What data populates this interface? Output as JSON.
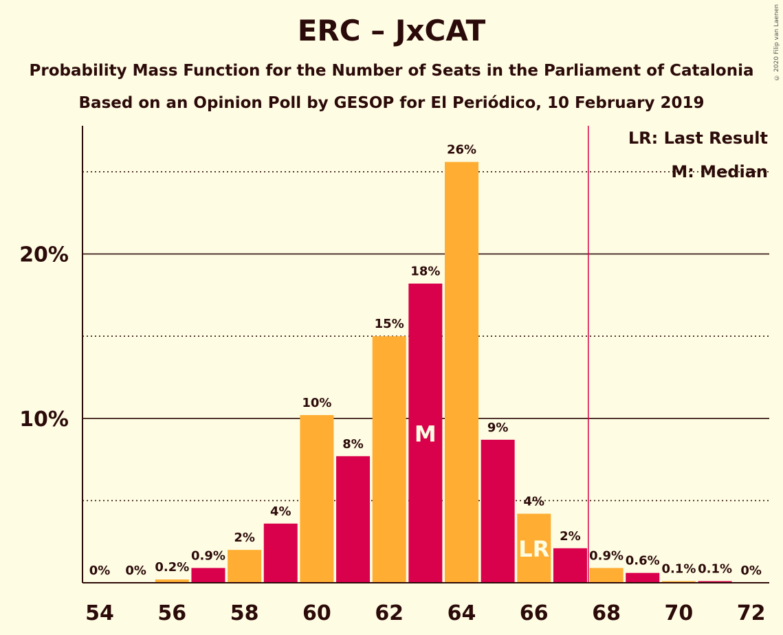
{
  "title": "ERC – JxCAT",
  "subtitle": "Probability Mass Function for the Number of Seats in the Parliament of Catalonia",
  "subtitle2": "Based on an Opinion Poll by GESOP for El Periódico, 10 February 2019",
  "copyright": "© 2020 Filip van Laenen",
  "colors": {
    "background": "#FEFCE2",
    "bar_odd": "#D9004C",
    "bar_even": "#FFAE33",
    "text": "#2B0A0A",
    "last_result_line": "#D9004C"
  },
  "chart_data": {
    "type": "bar",
    "x": [
      54,
      55,
      56,
      57,
      58,
      59,
      60,
      61,
      62,
      63,
      64,
      65,
      66,
      67,
      68,
      69,
      70,
      71,
      72
    ],
    "values": [
      0,
      0,
      0.2,
      0.9,
      2,
      3.6,
      10.2,
      7.7,
      15,
      18.2,
      25.6,
      8.7,
      4.2,
      2.1,
      0.9,
      0.6,
      0.1,
      0.1,
      0
    ],
    "labels": [
      "0%",
      "0%",
      "0.2%",
      "0.9%",
      "2%",
      "4%",
      "10%",
      "8%",
      "15%",
      "18%",
      "26%",
      "9%",
      "4%",
      "2%",
      "0.9%",
      "0.6%",
      "0.1%",
      "0.1%",
      "0%"
    ],
    "x_tick_labels": [
      "54",
      "56",
      "58",
      "60",
      "62",
      "64",
      "66",
      "68",
      "70",
      "72"
    ],
    "y_tick_labels": [
      "10%",
      "20%"
    ],
    "ylim": [
      0,
      27.8
    ],
    "major_gridlines": [
      10,
      20
    ],
    "minor_gridlines": [
      5,
      15,
      25
    ],
    "median": 63,
    "median_label": "M",
    "last_result": 66,
    "last_result_label": "LR",
    "majority_line_x": 67.5,
    "legend": [
      "LR: Last Result",
      "M: Median"
    ],
    "legend_position": "top-right"
  }
}
